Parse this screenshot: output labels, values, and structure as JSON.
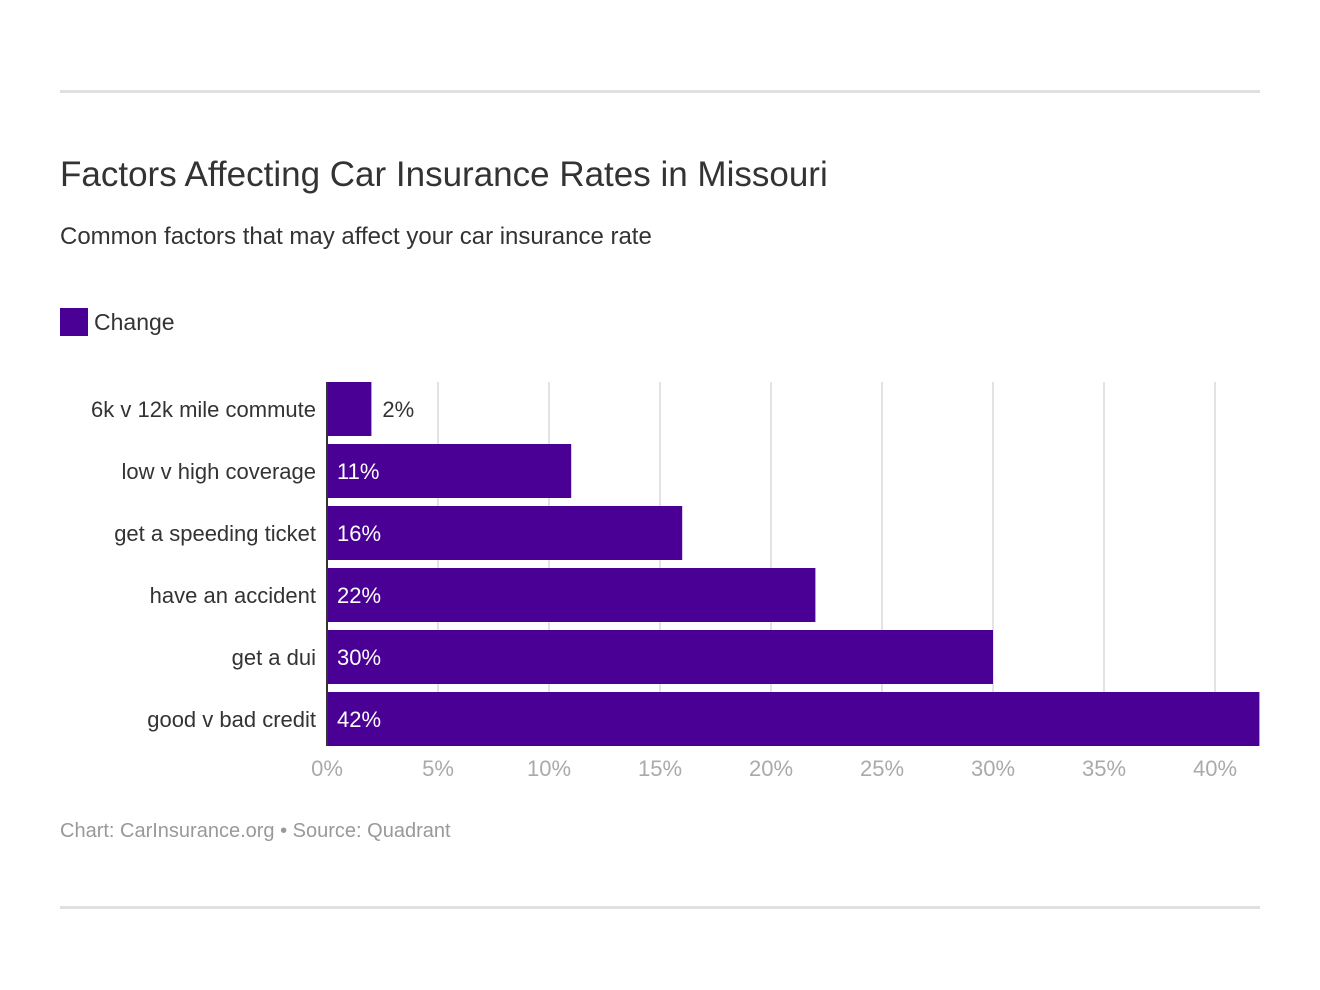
{
  "chart_data": {
    "type": "bar",
    "orientation": "horizontal",
    "title": "Factors Affecting Car Insurance Rates in Missouri",
    "subtitle": "Common factors that may affect your car insurance rate",
    "categories": [
      "6k v 12k mile commute",
      "low v high coverage",
      "get a speeding ticket",
      "have an accident",
      "get a dui",
      "good v bad credit"
    ],
    "series": [
      {
        "name": "Change",
        "values": [
          2,
          11,
          16,
          22,
          30,
          42
        ],
        "color": "#4a0094"
      }
    ],
    "data_labels": [
      "2%",
      "11%",
      "16%",
      "22%",
      "30%",
      "42%"
    ],
    "xlim": [
      0,
      42
    ],
    "x_ticks": [
      0,
      5,
      10,
      15,
      20,
      25,
      30,
      35,
      40
    ],
    "x_tick_labels": [
      "0%",
      "5%",
      "10%",
      "15%",
      "20%",
      "25%",
      "30%",
      "35%",
      "40%"
    ],
    "grid": true,
    "legend": "top-left"
  },
  "footer": "Chart: CarInsurance.org • Source: Quadrant"
}
